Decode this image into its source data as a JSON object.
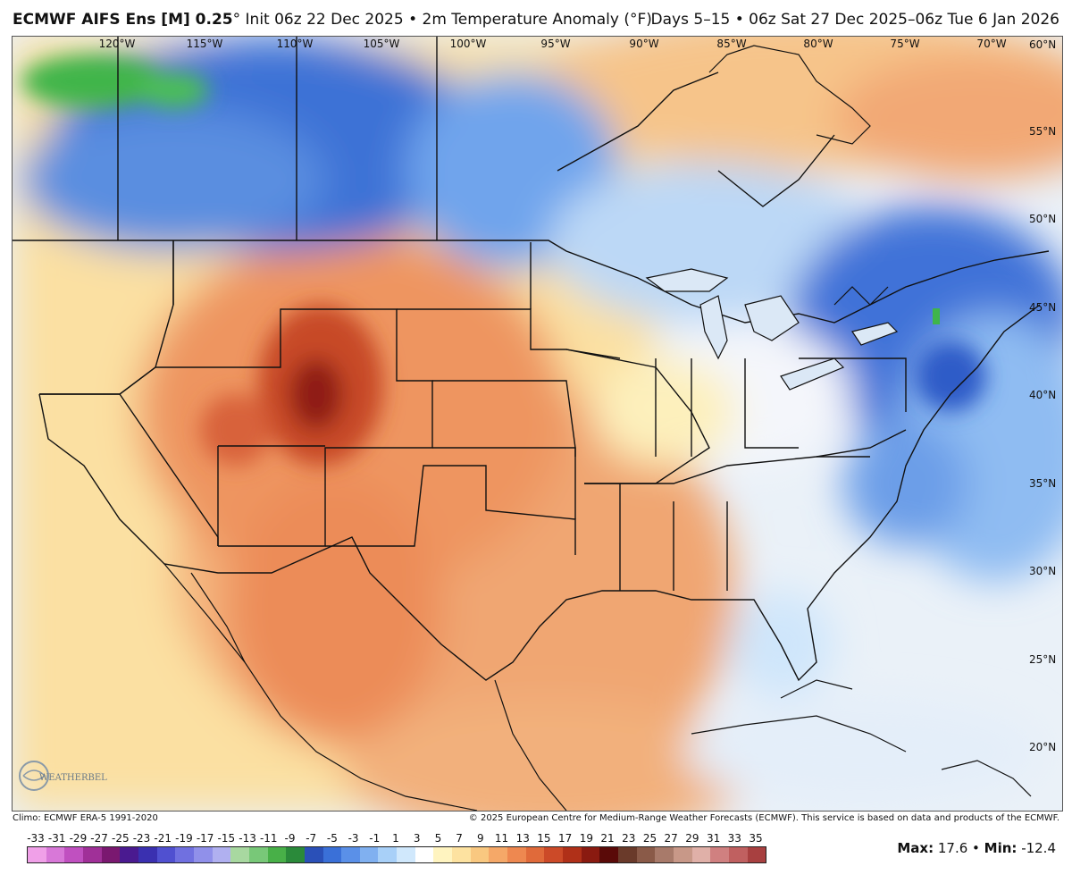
{
  "header": {
    "model": "ECMWF AIFS Ens [M] 0.25",
    "degree": "°",
    "init": " Init 06z 22 Dec 2025 • 2m Temperature Anomaly (°F)",
    "valid": "Days 5–15 • 06z Sat 27 Dec 2025–06z Tue 6 Jan 2026"
  },
  "longitudes": [
    "120°W",
    "115°W",
    "110°W",
    "105°W",
    "100°W",
    "95°W",
    "90°W",
    "85°W",
    "80°W",
    "75°W",
    "70°W"
  ],
  "latitudes": [
    "60°N",
    "55°N",
    "50°N",
    "45°N",
    "40°N",
    "35°N",
    "30°N",
    "25°N",
    "20°N"
  ],
  "footer": {
    "climo": "Climo: ECMWF ERA-5 1991-2020",
    "copyright": "© 2025 European Centre for Medium-Range Weather Forecasts (ECMWF). This service is based on data and products of the ECMWF."
  },
  "colorbar": {
    "ticks": [
      "-33",
      "-31",
      "-29",
      "-27",
      "-25",
      "-23",
      "-21",
      "-19",
      "-17",
      "-15",
      "-13",
      "-11",
      "-9",
      "-7",
      "-5",
      "-3",
      "-1",
      "1",
      "3",
      "5",
      "7",
      "9",
      "11",
      "13",
      "15",
      "17",
      "19",
      "21",
      "23",
      "25",
      "27",
      "29",
      "31",
      "33",
      "35"
    ],
    "colors": [
      "#f0a0e8",
      "#d878d8",
      "#c050c0",
      "#a03098",
      "#7a1870",
      "#4a1a90",
      "#3a30b0",
      "#5050d0",
      "#7070e0",
      "#9090ea",
      "#b0b0f0",
      "#a8d8a0",
      "#78c878",
      "#48b048",
      "#2a8a3a",
      "#2a50b8",
      "#3a70d8",
      "#5a90e8",
      "#80b0f0",
      "#a8d0f8",
      "#d0e8fc",
      "#ffffff",
      "#fff4c0",
      "#fde2a0",
      "#f9c880",
      "#f5a868",
      "#ee8850",
      "#e06a3a",
      "#cc4a28",
      "#b03018",
      "#8a1a10",
      "#5a0a08",
      "#6a3a2a",
      "#8a5a48",
      "#a87a6a",
      "#c89888",
      "#e0b0a8",
      "#d08080",
      "#c06060",
      "#a84040"
    ],
    "max_label": "Max:",
    "max_value": "17.6",
    "min_label": "Min:",
    "min_value": "-12.4",
    "sep": " • "
  },
  "logo_text": "WEATHERBELL",
  "colors": {
    "ocean_neutral": "#e8eef6",
    "warm_light": "#fde7a8",
    "warm_mid": "#f7bf7e",
    "warm_strong": "#ee8a55",
    "warm_max": "#c2401f",
    "cold_light": "#c9e1fb",
    "cold_mid": "#7fb0f0",
    "cold_strong": "#3f72d8",
    "green": "#3fb54a"
  }
}
